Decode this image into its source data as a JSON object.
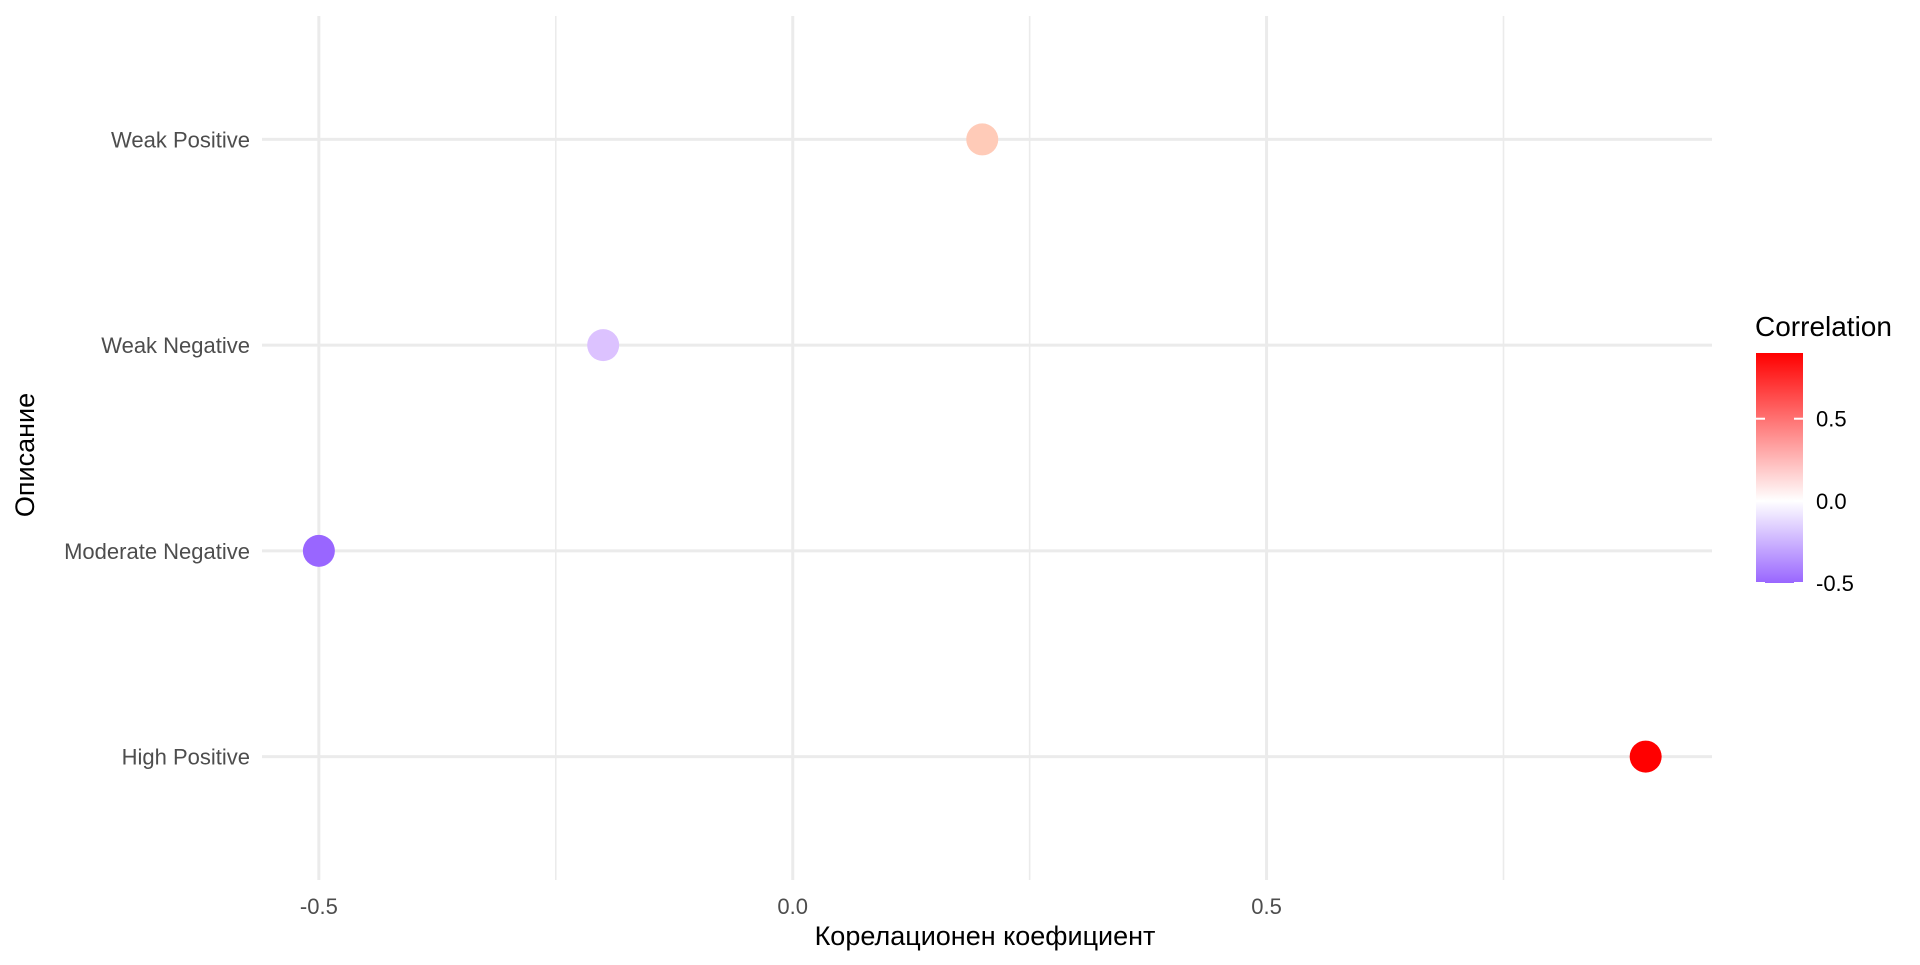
{
  "chart_data": {
    "type": "scatter",
    "title": "",
    "xlabel": "Корелационен коефициент",
    "ylabel": "Описание",
    "categories": [
      "High Positive",
      "Moderate Negative",
      "Weak Negative",
      "Weak Positive"
    ],
    "points": [
      {
        "category": "Weak Positive",
        "x": 0.2,
        "color": "#FFCBB8"
      },
      {
        "category": "Weak Negative",
        "x": -0.2,
        "color": "#DCC2FF"
      },
      {
        "category": "Moderate Negative",
        "x": -0.5,
        "color": "#9966FF"
      },
      {
        "category": "High Positive",
        "x": 0.9,
        "color": "#FF0000"
      }
    ],
    "xlim": [
      -0.56,
      0.97
    ],
    "xticks": [
      -0.5,
      0.0,
      0.5
    ],
    "xtick_labels": [
      "-0.5",
      "0.0",
      "0.5"
    ],
    "grid": true,
    "legend": {
      "title": "Correlation",
      "position": "right",
      "range": [
        -0.5,
        0.9
      ],
      "ticks": [
        0.5,
        0.0,
        -0.5
      ],
      "tick_labels": [
        "0.5",
        "0.0",
        "-0.5"
      ],
      "low_color": "#9966FF",
      "mid_color": "#FFFFFF",
      "high_color": "#FF0000"
    }
  }
}
